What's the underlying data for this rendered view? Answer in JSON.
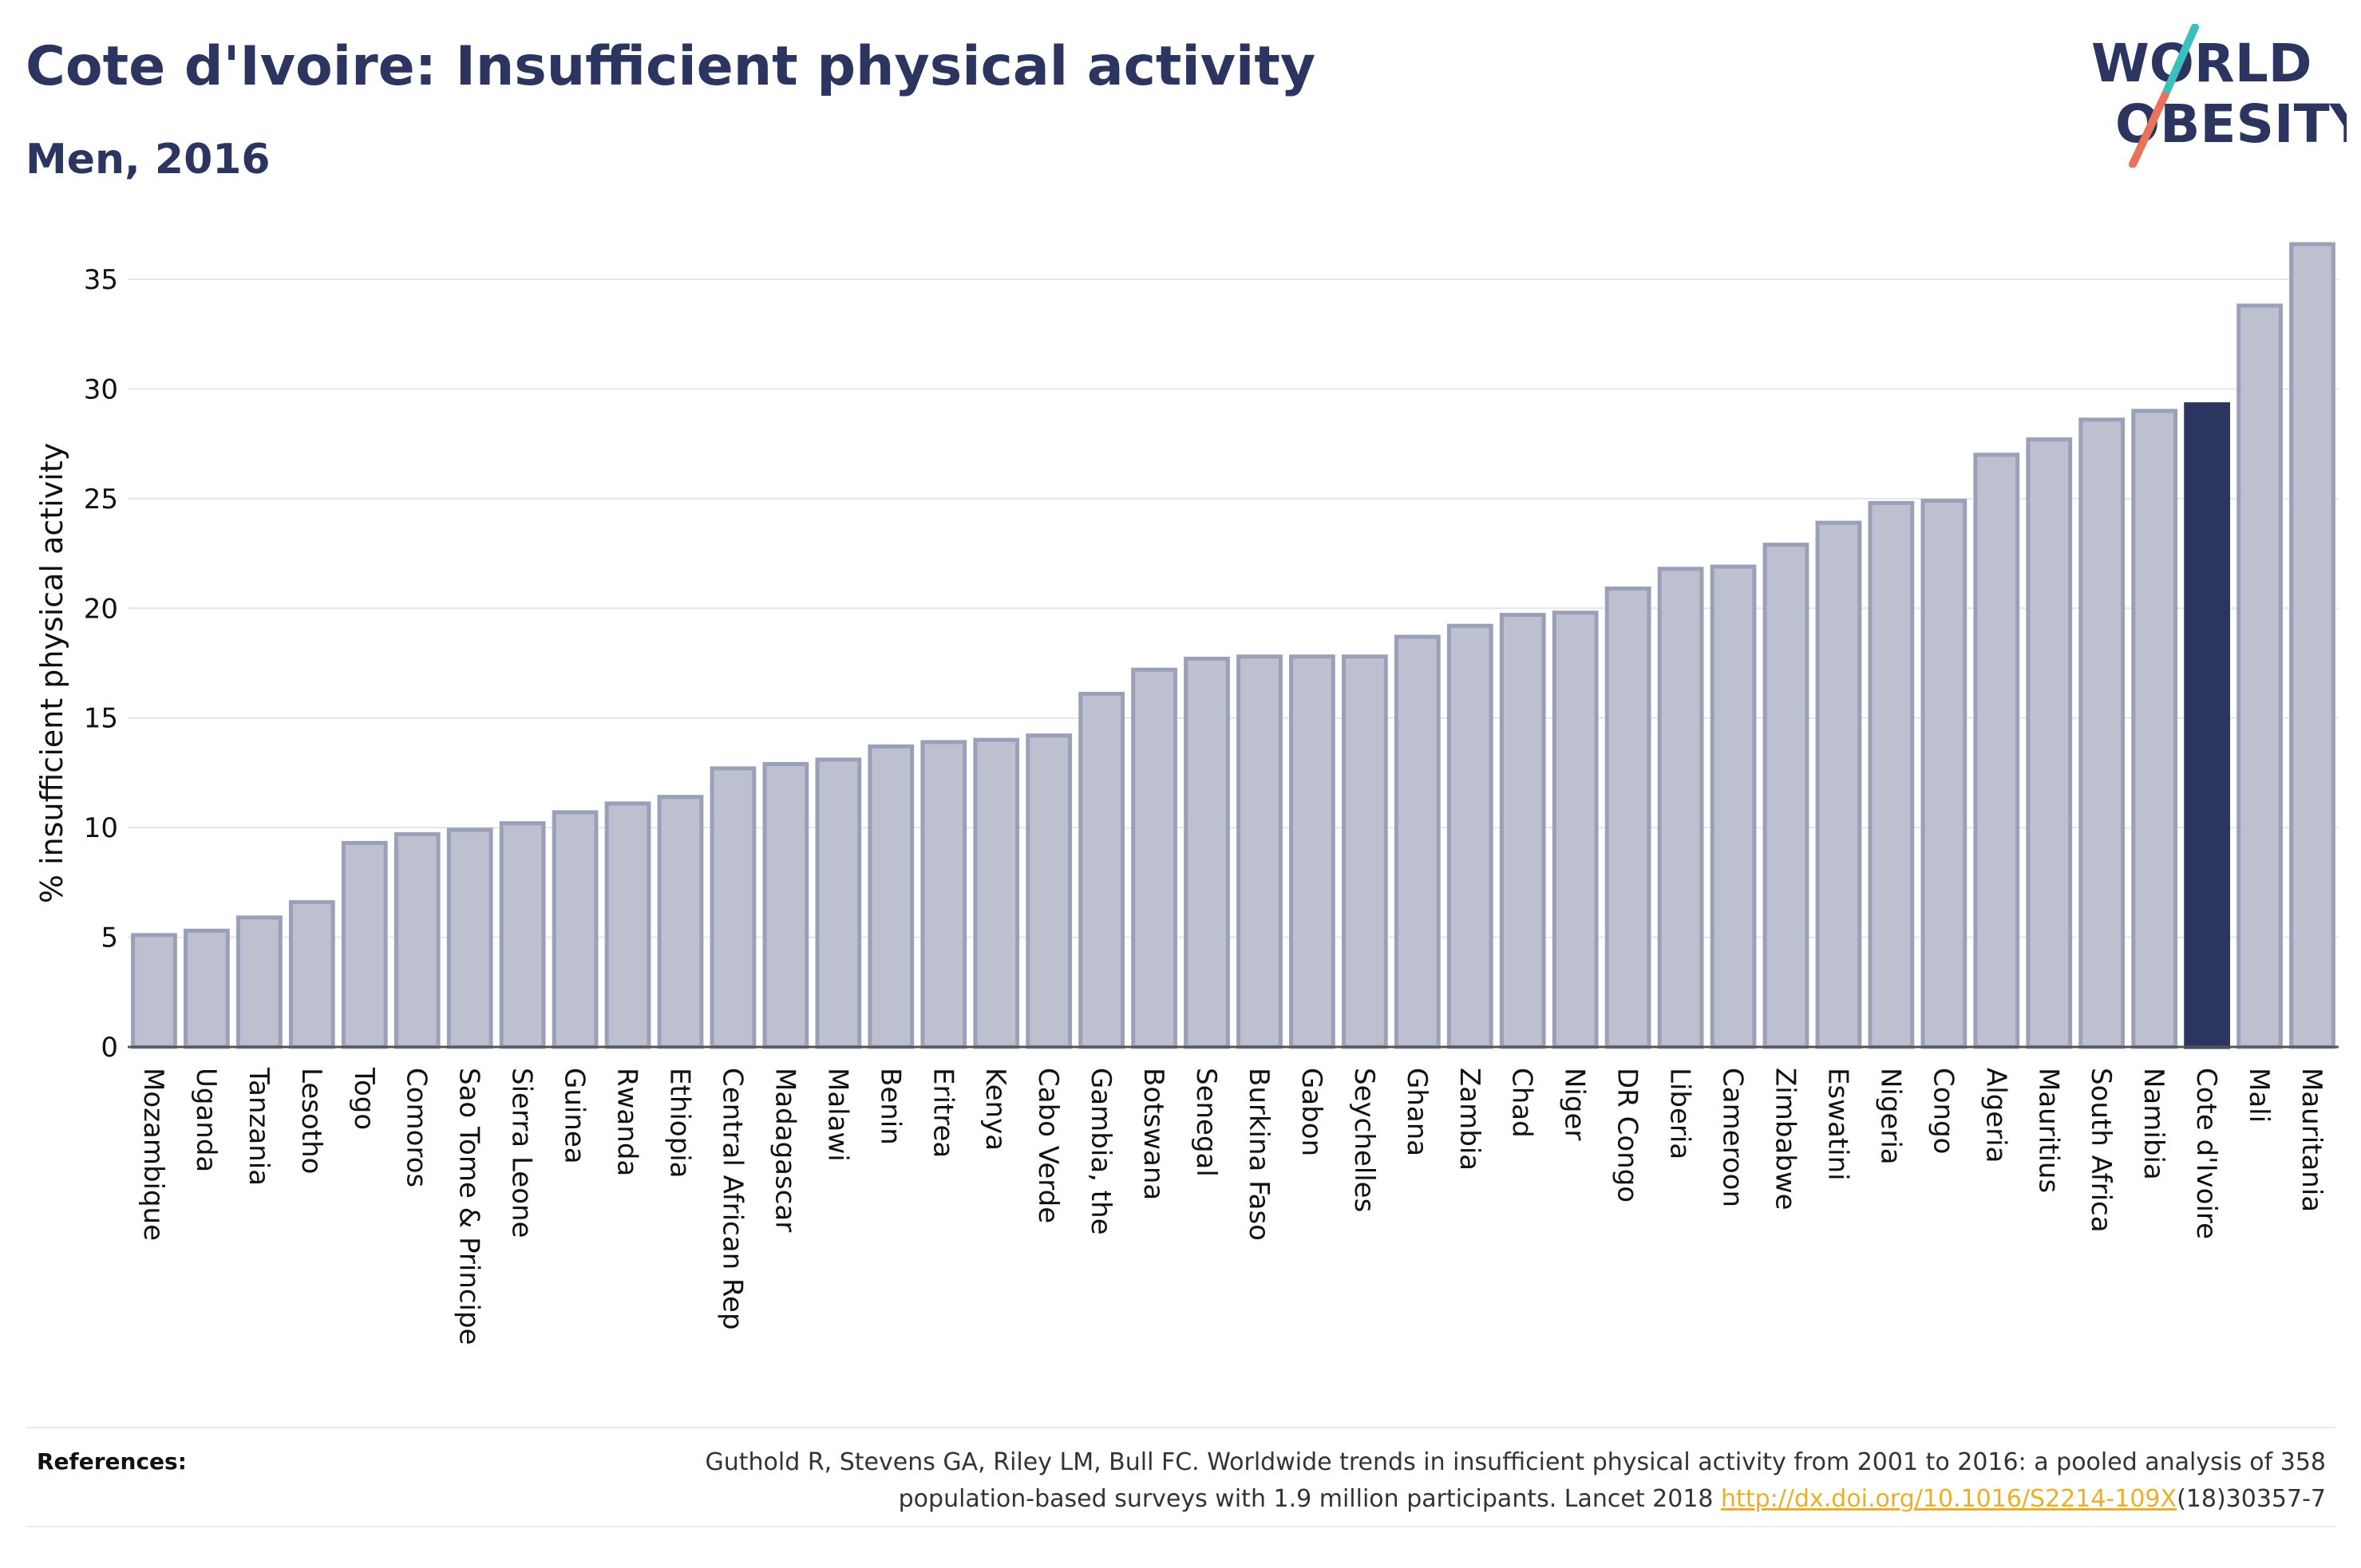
{
  "header": {
    "title": "Cote d'Ivoire: Insufficient physical activity",
    "subtitle": "Men, 2016"
  },
  "logo": {
    "line1": "WORLD",
    "line2": "OBESITY",
    "colors": {
      "text": "#2b3560",
      "slash_top": "#3bbfbf",
      "slash_bottom": "#e8735a"
    }
  },
  "chart_data": {
    "type": "bar",
    "ylabel": "% insufficient physical activity",
    "ylim": [
      0,
      37
    ],
    "yticks": [
      0,
      5,
      10,
      15,
      20,
      25,
      30,
      35
    ],
    "grid": true,
    "highlight": "Cote d'Ivoire",
    "colors": {
      "bar": "#bcc0cf",
      "bar_border": "#9aa0b8",
      "highlight": "#2b3560"
    },
    "categories": [
      "Mozambique",
      "Uganda",
      "Tanzania",
      "Lesotho",
      "Togo",
      "Comoros",
      "Sao Tome & Principe",
      "Sierra Leone",
      "Guinea",
      "Rwanda",
      "Ethiopia",
      "Central African Rep",
      "Madagascar",
      "Malawi",
      "Benin",
      "Eritrea",
      "Kenya",
      "Cabo Verde",
      "Gambia, the",
      "Botswana",
      "Senegal",
      "Burkina Faso",
      "Gabon",
      "Seychelles",
      "Ghana",
      "Zambia",
      "Chad",
      "Niger",
      "DR Congo",
      "Liberia",
      "Cameroon",
      "Zimbabwe",
      "Eswatini",
      "Nigeria",
      "Congo",
      "Algeria",
      "Mauritius",
      "South Africa",
      "Namibia",
      "Cote d'Ivoire",
      "Mali",
      "Mauritania"
    ],
    "values": [
      5.1,
      5.3,
      5.9,
      6.6,
      9.3,
      9.7,
      9.9,
      10.2,
      10.7,
      11.1,
      11.4,
      12.7,
      12.9,
      13.1,
      13.7,
      13.9,
      14.0,
      14.2,
      16.1,
      17.2,
      17.7,
      17.8,
      17.8,
      17.8,
      18.7,
      19.2,
      19.7,
      19.8,
      20.9,
      21.8,
      21.9,
      22.9,
      23.9,
      24.8,
      24.9,
      27.0,
      27.7,
      28.6,
      29.0,
      29.3,
      33.8,
      36.6
    ]
  },
  "references": {
    "label": "References:",
    "line1": "Guthold R, Stevens GA, Riley LM, Bull FC. Worldwide trends in insufficient physical activity from 2001 to 2016: a pooled analysis of 358",
    "line2_prefix": "population-based surveys with 1.9 million participants. Lancet 2018 ",
    "link_text": "http://dx.doi.org/10.1016/S2214-109X",
    "line2_suffix": "(18)30357-7"
  }
}
